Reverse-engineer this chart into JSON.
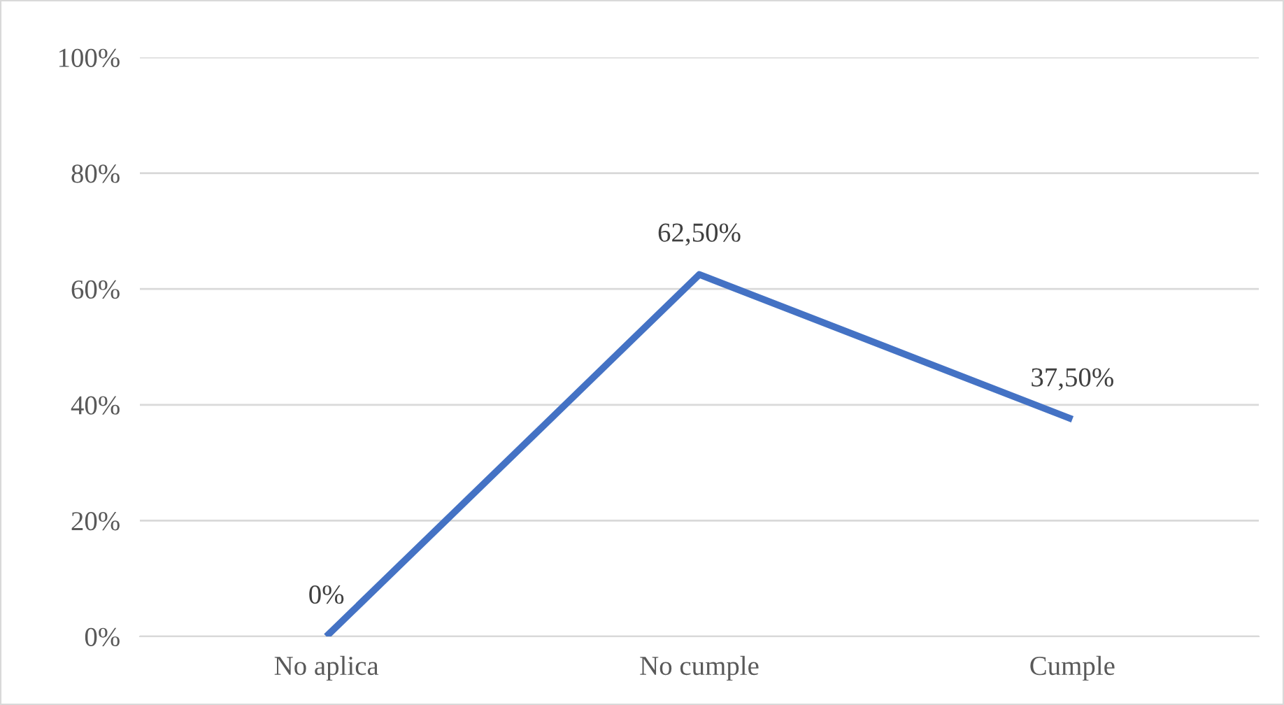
{
  "chart_data": {
    "type": "line",
    "categories": [
      "No aplica",
      "No cumple",
      "Cumple"
    ],
    "series": [
      {
        "color": "#4472c4",
        "values": [
          0,
          62.5,
          37.5
        ],
        "value_labels": [
          "0%",
          "62,50%",
          "37,50%"
        ]
      }
    ],
    "ylim": [
      0,
      100
    ],
    "yticks": [
      {
        "value": 0,
        "label": "0%"
      },
      {
        "value": 20,
        "label": "20%"
      },
      {
        "value": 40,
        "label": "40%"
      },
      {
        "value": 60,
        "label": "60%"
      },
      {
        "value": 80,
        "label": "80%"
      },
      {
        "value": 100,
        "label": "100%"
      }
    ],
    "grid": "y",
    "marker": "none",
    "line_style": "solid",
    "legend": false
  }
}
